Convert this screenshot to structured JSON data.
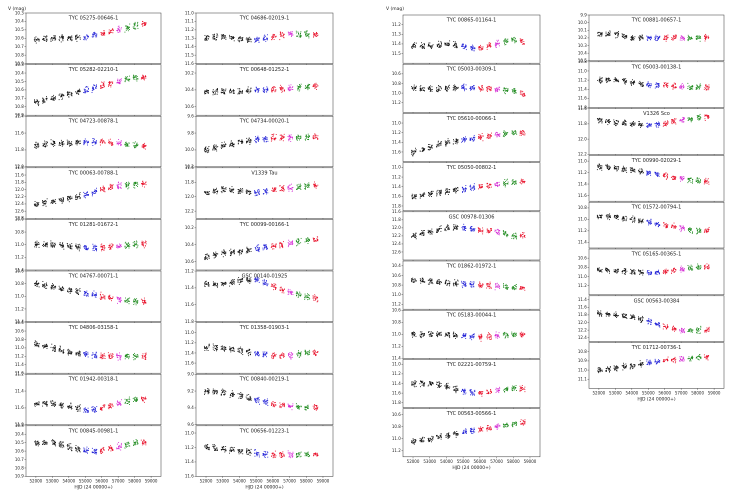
{
  "figure": {
    "ylabel": "V (mag)",
    "xlabel": "HJD (24 00000+)",
    "x_ticks": [
      "52000",
      "53000",
      "54000",
      "55000",
      "56000",
      "57000",
      "58000",
      "59000"
    ],
    "series_colors": [
      "#111111",
      "#1f1fd6",
      "#e8102a",
      "#d42bd4",
      "#1d8a1d"
    ]
  },
  "chart_data": [
    {
      "type": "scatter",
      "title": "TYC 05275-00646-1",
      "ylim": [
        10.9,
        10.3
      ],
      "yticks": [
        "10.3",
        "10.4",
        "10.5",
        "10.6",
        "10.7",
        "10.8",
        "10.9"
      ],
      "trend": [
        10.62,
        10.6,
        10.6,
        10.58,
        10.55,
        10.5,
        10.45,
        10.4
      ]
    },
    {
      "type": "scatter",
      "title": "TYC 05282-02210-1",
      "ylim": [
        10.9,
        10.3
      ],
      "yticks": [
        "10.3",
        "10.4",
        "10.5",
        "10.6",
        "10.7",
        "10.8",
        "10.9"
      ],
      "trend": [
        10.75,
        10.7,
        10.65,
        10.6,
        10.55,
        10.5,
        10.45,
        10.45
      ]
    },
    {
      "type": "scatter",
      "title": "TYC 04723-00878-1",
      "ylim": [
        12.0,
        11.4
      ],
      "yticks": [
        "11.4",
        "11.6",
        "11.8",
        "12.0"
      ],
      "trend": [
        11.75,
        11.72,
        11.72,
        11.7,
        11.7,
        11.72,
        11.74,
        11.75
      ]
    },
    {
      "type": "scatter",
      "title": "TYC 00063-00788-1",
      "ylim": [
        12.8,
        11.4
      ],
      "yticks": [
        "11.4",
        "11.6",
        "11.8",
        "12.0",
        "12.2",
        "12.4",
        "12.6",
        "12.8"
      ],
      "trend": [
        12.4,
        12.35,
        12.25,
        12.15,
        12.0,
        11.9,
        11.85,
        11.8
      ]
    },
    {
      "type": "scatter",
      "title": "TYC 01281-01672-1",
      "ylim": [
        11.4,
        10.6
      ],
      "yticks": [
        "10.6",
        "10.8",
        "11.0",
        "11.2",
        "11.4"
      ],
      "trend": [
        11.0,
        11.0,
        11.02,
        11.05,
        11.05,
        11.02,
        11.0,
        10.98
      ]
    },
    {
      "type": "scatter",
      "title": "TYC 04767-00071-1",
      "ylim": [
        11.4,
        10.6
      ],
      "yticks": [
        "10.6",
        "10.8",
        "11.0",
        "11.2",
        "11.4"
      ],
      "trend": [
        10.8,
        10.85,
        10.9,
        10.95,
        11.0,
        11.05,
        11.08,
        11.1
      ]
    },
    {
      "type": "scatter",
      "title": "TYC 04806-03158-1",
      "ylim": [
        11.6,
        10.4
      ],
      "yticks": [
        "10.4",
        "10.6",
        "10.8",
        "11.0",
        "11.2",
        "11.4",
        "11.6"
      ],
      "trend": [
        10.9,
        11.0,
        11.1,
        11.15,
        11.2,
        11.2,
        11.2,
        11.2
      ]
    },
    {
      "type": "scatter",
      "title": "TYC 01942-00318-1",
      "ylim": [
        11.8,
        11.2
      ],
      "yticks": [
        "11.2",
        "11.4",
        "11.6",
        "11.8"
      ],
      "trend": [
        11.55,
        11.55,
        11.58,
        11.62,
        11.6,
        11.55,
        11.5,
        11.5
      ]
    },
    {
      "type": "scatter",
      "title": "TYC 00845-00981-1",
      "ylim": [
        10.9,
        10.3
      ],
      "yticks": [
        "10.3",
        "10.4",
        "10.5",
        "10.6",
        "10.7",
        "10.8",
        "10.9"
      ],
      "trend": [
        10.5,
        10.5,
        10.55,
        10.6,
        10.6,
        10.55,
        10.5,
        10.5
      ]
    },
    {
      "type": "scatter",
      "title": "TYC 04686-02019-1",
      "ylim": [
        11.6,
        11.0
      ],
      "yticks": [
        "11.0",
        "11.1",
        "11.2",
        "11.3",
        "11.4",
        "11.5",
        "11.6"
      ],
      "trend": [
        11.3,
        11.28,
        11.3,
        11.32,
        11.28,
        11.25,
        11.25,
        11.25
      ]
    },
    {
      "type": "scatter",
      "title": "TYC 00648-01252-1",
      "ylim": [
        10.7,
        10.1
      ],
      "yticks": [
        "10.2",
        "10.4",
        "10.6"
      ],
      "trend": [
        10.42,
        10.42,
        10.42,
        10.4,
        10.4,
        10.38,
        10.36,
        10.35
      ]
    },
    {
      "type": "scatter",
      "title": "TYC 04734-00020-1",
      "ylim": [
        10.2,
        9.6
      ],
      "yticks": [
        "9.6",
        "9.8",
        "10.0",
        "10.2"
      ],
      "trend": [
        10.0,
        9.95,
        9.9,
        9.88,
        9.85,
        9.85,
        9.85,
        9.85
      ]
    },
    {
      "type": "scatter",
      "title": "V1339 Tau",
      "ylim": [
        12.3,
        11.6
      ],
      "yticks": [
        "11.6",
        "11.8",
        "12.0",
        "12.2"
      ],
      "trend": [
        11.95,
        11.9,
        11.92,
        11.95,
        11.9,
        11.88,
        11.85,
        11.85
      ]
    },
    {
      "type": "scatter",
      "title": "TYC 00099-00166-1",
      "ylim": [
        10.7,
        10.1
      ],
      "yticks": [
        "10.2",
        "10.4",
        "10.6"
      ],
      "trend": [
        10.55,
        10.5,
        10.48,
        10.45,
        10.42,
        10.38,
        10.35,
        10.33
      ]
    },
    {
      "type": "scatter",
      "title": "GSC 00140-01925",
      "ylim": [
        11.8,
        11.2
      ],
      "yticks": [
        "11.2",
        "11.4",
        "11.6",
        "11.8"
      ],
      "trend": [
        11.35,
        11.35,
        11.32,
        11.3,
        11.38,
        11.45,
        11.5,
        11.55
      ]
    },
    {
      "type": "scatter",
      "title": "TYC 01358-01903-1",
      "ylim": [
        11.8,
        10.8
      ],
      "yticks": [
        "11.0",
        "11.2",
        "11.4",
        "11.6"
      ],
      "trend": [
        11.3,
        11.3,
        11.35,
        11.4,
        11.45,
        11.45,
        11.4,
        11.4
      ]
    },
    {
      "type": "scatter",
      "title": "TYC 00840-00219-1",
      "ylim": [
        9.6,
        9.0
      ],
      "yticks": [
        "9.0",
        "9.2",
        "9.4",
        "9.6"
      ],
      "trend": [
        9.2,
        9.22,
        9.25,
        9.3,
        9.35,
        9.38,
        9.4,
        9.4
      ]
    },
    {
      "type": "scatter",
      "title": "TYC 00656-01223-1",
      "ylim": [
        11.6,
        10.9
      ],
      "yticks": [
        "11.0",
        "11.2",
        "11.4",
        "11.6"
      ],
      "trend": [
        11.2,
        11.22,
        11.25,
        11.28,
        11.3,
        11.3,
        11.3,
        11.3
      ]
    },
    {
      "type": "scatter",
      "title": "TYC 00865-01164-1",
      "ylim": [
        11.6,
        11.1
      ],
      "yticks": [
        "11.2",
        "11.3",
        "11.4",
        "11.5"
      ],
      "trend": [
        11.42,
        11.42,
        11.4,
        11.42,
        11.45,
        11.4,
        11.35,
        11.4
      ]
    },
    {
      "type": "scatter",
      "title": "TYC 05003-00309-1",
      "ylim": [
        11.4,
        10.4
      ],
      "yticks": [
        "10.6",
        "10.8",
        "11.0",
        "11.2"
      ],
      "trend": [
        10.9,
        10.92,
        10.9,
        10.88,
        10.9,
        10.92,
        10.95,
        11.05
      ]
    },
    {
      "type": "scatter",
      "title": "TYC 05610-00066-1",
      "ylim": [
        11.8,
        10.8
      ],
      "yticks": [
        "11.0",
        "11.2",
        "11.4",
        "11.6"
      ],
      "trend": [
        11.6,
        11.5,
        11.4,
        11.35,
        11.3,
        11.25,
        11.2,
        11.2
      ]
    },
    {
      "type": "scatter",
      "title": "TYC 05050-00802-1",
      "ylim": [
        11.9,
        10.9
      ],
      "yticks": [
        "11.0",
        "11.2",
        "11.4",
        "11.6",
        "11.8"
      ],
      "trend": [
        11.6,
        11.55,
        11.5,
        11.45,
        11.4,
        11.35,
        11.3,
        11.3
      ]
    },
    {
      "type": "scatter",
      "title": "GSC 00978-01306",
      "ylim": [
        12.8,
        11.6
      ],
      "yticks": [
        "11.6",
        "11.8",
        "12.0",
        "12.2",
        "12.4",
        "12.6"
      ],
      "trend": [
        12.2,
        12.1,
        12.0,
        12.0,
        12.05,
        12.1,
        12.2,
        12.2
      ]
    },
    {
      "type": "scatter",
      "title": "TYC 01862-01972-1",
      "ylim": [
        11.3,
        10.3
      ],
      "yticks": [
        "10.4",
        "10.6",
        "10.8",
        "11.0",
        "11.2"
      ],
      "trend": [
        10.7,
        10.72,
        10.75,
        10.78,
        10.8,
        10.82,
        10.85,
        10.85
      ]
    },
    {
      "type": "scatter",
      "title": "TYC 05183-00044-1",
      "ylim": [
        11.4,
        10.6
      ],
      "yticks": [
        "10.6",
        "10.8",
        "11.0",
        "11.2",
        "11.4"
      ],
      "trend": [
        11.0,
        11.0,
        11.0,
        11.02,
        11.05,
        11.02,
        11.0,
        11.0
      ]
    },
    {
      "type": "scatter",
      "title": "TYC 02221-00759-1",
      "ylim": [
        11.9,
        10.9
      ],
      "yticks": [
        "11.0",
        "11.2",
        "11.4",
        "11.6",
        "11.8"
      ],
      "trend": [
        11.4,
        11.4,
        11.45,
        11.55,
        11.6,
        11.55,
        11.5,
        11.5
      ]
    },
    {
      "type": "scatter",
      "title": "TYC 00563-00566-1",
      "ylim": [
        11.3,
        10.5
      ],
      "yticks": [
        "10.6",
        "10.8",
        "11.0",
        "11.2"
      ],
      "trend": [
        11.05,
        11.0,
        10.95,
        10.9,
        10.85,
        10.8,
        10.75,
        10.72
      ]
    },
    {
      "type": "scatter",
      "title": "TYC 00881-00657-1",
      "ylim": [
        10.5,
        9.9
      ],
      "yticks": [
        "9.9",
        "10.0",
        "10.1",
        "10.2",
        "10.3",
        "10.4",
        "10.5"
      ],
      "trend": [
        10.15,
        10.15,
        10.2,
        10.2,
        10.2,
        10.2,
        10.2,
        10.2
      ]
    },
    {
      "type": "scatter",
      "title": "TYC 05003-00138-1",
      "ylim": [
        11.8,
        10.8
      ],
      "yticks": [
        "10.8",
        "11.0",
        "11.2",
        "11.4",
        "11.6",
        "11.8"
      ],
      "trend": [
        11.2,
        11.2,
        11.25,
        11.3,
        11.3,
        11.35,
        11.35,
        11.35
      ]
    },
    {
      "type": "scatter",
      "title": "V1326 Sco",
      "ylim": [
        12.2,
        11.6
      ],
      "yticks": [
        "11.6",
        "11.8",
        "12.0",
        "12.2"
      ],
      "trend": [
        11.75,
        11.78,
        11.8,
        11.82,
        11.8,
        11.75,
        11.72,
        11.7
      ]
    },
    {
      "type": "scatter",
      "title": "TYC 00990-02029-1",
      "ylim": [
        11.7,
        10.9
      ],
      "yticks": [
        "11.0",
        "11.2",
        "11.4",
        "11.6"
      ],
      "trend": [
        11.1,
        11.12,
        11.15,
        11.2,
        11.25,
        11.3,
        11.35,
        11.35
      ]
    },
    {
      "type": "scatter",
      "title": "TYC 01572-00794-1",
      "ylim": [
        11.5,
        10.7
      ],
      "yticks": [
        "10.8",
        "11.0",
        "11.2",
        "11.4"
      ],
      "trend": [
        10.95,
        10.95,
        11.0,
        11.05,
        11.1,
        11.15,
        11.2,
        11.2
      ]
    },
    {
      "type": "scatter",
      "title": "TYC 05165-00365-1",
      "ylim": [
        11.4,
        10.4
      ],
      "yticks": [
        "10.6",
        "10.8",
        "11.0",
        "11.2"
      ],
      "trend": [
        10.85,
        10.88,
        10.9,
        10.92,
        10.9,
        10.85,
        10.8,
        10.78
      ]
    },
    {
      "type": "scatter",
      "title": "GSC 00563-00384",
      "ylim": [
        12.5,
        11.3
      ],
      "yticks": [
        "11.4",
        "11.6",
        "11.8",
        "12.0",
        "12.2",
        "12.4"
      ],
      "trend": [
        11.75,
        11.8,
        11.85,
        11.95,
        12.1,
        12.2,
        12.2,
        12.2
      ]
    },
    {
      "type": "scatter",
      "title": "TYC 01712-00736-1",
      "ylim": [
        11.2,
        10.7
      ],
      "yticks": [
        "10.8",
        "10.9",
        "11.0",
        "11.1"
      ],
      "trend": [
        11.0,
        10.98,
        10.95,
        10.92,
        10.9,
        10.88,
        10.86,
        10.85
      ]
    }
  ]
}
